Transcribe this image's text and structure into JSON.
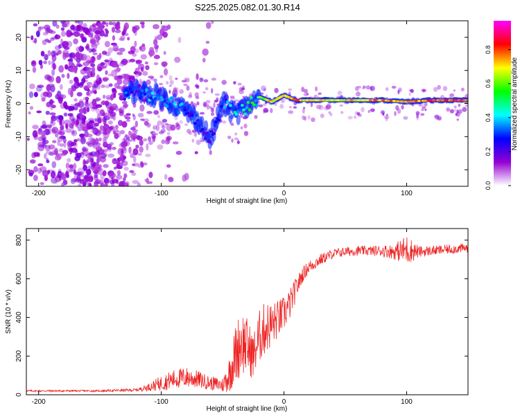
{
  "title": "S225.2025.082.01.30.R14",
  "chart_data": [
    {
      "type": "heatmap",
      "xlabel": "Height of straight line (km)",
      "ylabel": "Frequency (Hz)",
      "xlim": [
        -210,
        150
      ],
      "ylim": [
        -25,
        25
      ],
      "x_ticks": [
        -200,
        -100,
        0,
        100
      ],
      "y_ticks": [
        -20,
        -10,
        0,
        10,
        20
      ],
      "colorbar": {
        "label": "Normalized spectral amplitude",
        "range": [
          0.0,
          0.97
        ],
        "ticks": [
          0.0,
          0.2,
          0.4,
          0.6,
          0.8
        ],
        "colormap": [
          "#ffffff",
          "#9400d3",
          "#0000ff",
          "#00ffff",
          "#00ff00",
          "#ffff00",
          "#ff0000",
          "#ff00ff"
        ]
      },
      "signal_trace": [
        {
          "x": -130,
          "y": 3.0,
          "v": 0.35
        },
        {
          "x": -120,
          "y": 4.0,
          "v": 0.3
        },
        {
          "x": -110,
          "y": 3.0,
          "v": 0.4
        },
        {
          "x": -100,
          "y": 2.0,
          "v": 0.35
        },
        {
          "x": -90,
          "y": 0.0,
          "v": 0.4
        },
        {
          "x": -80,
          "y": -2.0,
          "v": 0.35
        },
        {
          "x": -70,
          "y": -5.0,
          "v": 0.3
        },
        {
          "x": -60,
          "y": -11.0,
          "v": 0.3
        },
        {
          "x": -50,
          "y": 0.0,
          "v": 0.35
        },
        {
          "x": -40,
          "y": -3.0,
          "v": 0.45
        },
        {
          "x": -30,
          "y": -1.0,
          "v": 0.5
        },
        {
          "x": -20,
          "y": 2.0,
          "v": 0.6
        },
        {
          "x": -10,
          "y": 0.5,
          "v": 0.75
        },
        {
          "x": 0,
          "y": 2.5,
          "v": 0.7
        },
        {
          "x": 10,
          "y": 1.0,
          "v": 0.8
        },
        {
          "x": 40,
          "y": 1.0,
          "v": 0.7
        },
        {
          "x": 60,
          "y": 1.0,
          "v": 0.75
        },
        {
          "x": 80,
          "y": 1.0,
          "v": 0.8
        },
        {
          "x": 100,
          "y": 0.5,
          "v": 0.75
        },
        {
          "x": 120,
          "y": 1.0,
          "v": 0.85
        },
        {
          "x": 150,
          "y": 1.0,
          "v": 0.85
        }
      ]
    },
    {
      "type": "line",
      "xlabel": "Height of straight line (km)",
      "ylabel": "SNR (10 * v/v)",
      "xlim": [
        -210,
        150
      ],
      "ylim": [
        0,
        860
      ],
      "x_ticks": [
        -200,
        -100,
        0,
        100
      ],
      "y_ticks": [
        0,
        200,
        400,
        600,
        800
      ],
      "series_color": "#ee2222",
      "series": [
        {
          "x": [
            -210,
            -180,
            -150,
            -120,
            -110,
            -100,
            -90,
            -80,
            -70,
            -60,
            -50,
            -45,
            -40,
            -35,
            -30,
            -25,
            -20,
            -15,
            -10,
            -5,
            0,
            5,
            10,
            15,
            20,
            30,
            40,
            50,
            60,
            70,
            80,
            90,
            100,
            110,
            120,
            130,
            140,
            150
          ],
          "y": [
            20,
            20,
            20,
            25,
            40,
            60,
            80,
            90,
            80,
            60,
            50,
            100,
            200,
            280,
            250,
            200,
            300,
            350,
            360,
            390,
            420,
            470,
            550,
            620,
            660,
            700,
            730,
            740,
            745,
            745,
            745,
            740,
            750,
            740,
            745,
            750,
            755,
            760
          ],
          "noise": [
            5,
            5,
            5,
            8,
            20,
            40,
            50,
            55,
            45,
            35,
            40,
            90,
            150,
            180,
            150,
            120,
            140,
            140,
            120,
            100,
            90,
            80,
            60,
            40,
            35,
            30,
            25,
            25,
            25,
            25,
            30,
            40,
            80,
            30,
            25,
            25,
            25,
            25
          ]
        }
      ]
    }
  ]
}
